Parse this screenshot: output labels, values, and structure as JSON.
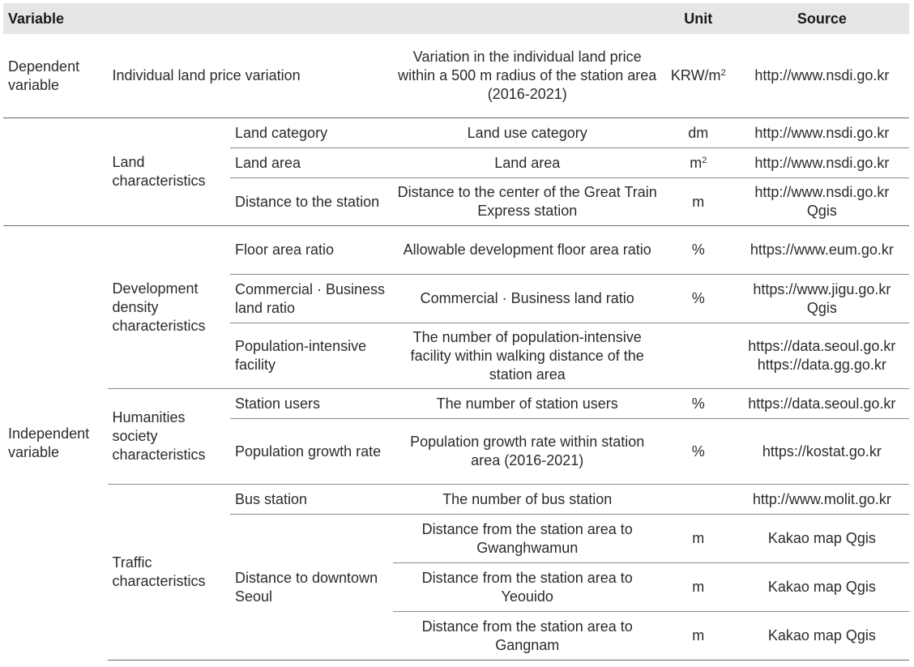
{
  "header": {
    "variable": "Variable",
    "unit": "Unit",
    "source": "Source"
  },
  "dependent": {
    "group": "Dependent variable",
    "name": "Individual land price variation",
    "description": "Variation in the individual land price within a 500 m radius of the station area (2016-2021)",
    "unit_base": "KRW/m",
    "unit_sup": "2",
    "source": "http://www.nsdi.go.kr"
  },
  "land": {
    "category": "Land characteristics",
    "rows": [
      {
        "name": "Land category",
        "description": "Land use category",
        "unit": "dm",
        "source": "http://www.nsdi.go.kr"
      },
      {
        "name": "Land area",
        "description": "Land area",
        "unit_base": "m",
        "unit_sup": "2",
        "source": "http://www.nsdi.go.kr"
      },
      {
        "name": "Distance to the station",
        "description": "Distance to the center of the Great Train Express station",
        "unit": "m",
        "source": "http://www.nsdi.go.kr Qgis"
      }
    ]
  },
  "independent": {
    "group": "Independent variable",
    "development": {
      "category": "Development density characteristics",
      "rows": [
        {
          "name": "Floor area ratio",
          "description": "Allowable development floor area ratio",
          "unit": "%",
          "source": "https://www.eum.go.kr"
        },
        {
          "name": "Commercial · Business land ratio",
          "description": "Commercial · Business land ratio",
          "unit": "%",
          "source": "https://www.jigu.go.kr Qgis"
        },
        {
          "name": "Population-intensive facility",
          "description": "The number of population-intensive facility within walking distance of the station area",
          "unit": "",
          "source": "https://data.seoul.go.kr https://data.gg.go.kr"
        }
      ]
    },
    "humanities": {
      "category": "Humanities society characteristics",
      "rows": [
        {
          "name": "Station users",
          "description": "The number of station users",
          "unit": "%",
          "source": "https://data.seoul.go.kr"
        },
        {
          "name": "Population growth rate",
          "description": "Population growth rate within station area (2016-2021)",
          "unit": "%",
          "source": "https://kostat.go.kr"
        }
      ]
    },
    "traffic": {
      "category": "Traffic characteristics",
      "bus": {
        "name": "Bus station",
        "description": "The number of bus station",
        "unit": "",
        "source": "http://www.molit.go.kr"
      },
      "downtown": {
        "name": "Distance to downtown Seoul",
        "rows": [
          {
            "description": "Distance from the station area to Gwanghwamun",
            "unit": "m",
            "source": "Kakao map Qgis"
          },
          {
            "description": "Distance from the station area to Yeouido",
            "unit": "m",
            "source": "Kakao map Qgis"
          },
          {
            "description": "Distance from the station area to Gangnam",
            "unit": "m",
            "source": "Kakao map Qgis"
          }
        ]
      }
    }
  }
}
